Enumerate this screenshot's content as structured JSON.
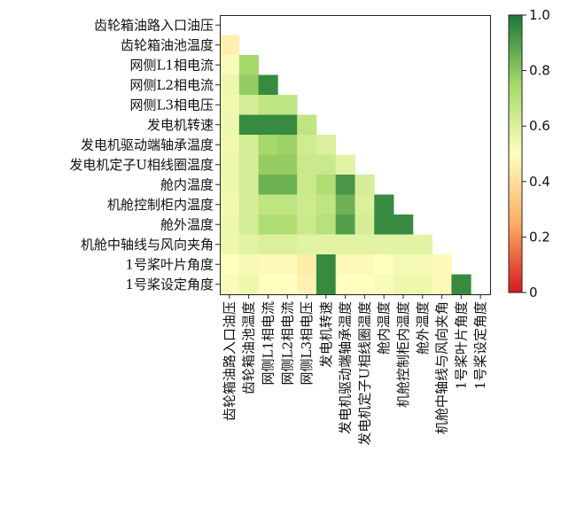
{
  "chart_data": {
    "type": "heatmap",
    "variables": [
      "齿轮箱油路入口油压",
      "齿轮箱油池温度",
      "网侧L1相电流",
      "网侧L2相电流",
      "网侧L3相电压",
      "发电机转速",
      "发电机驱动端轴承温度",
      "发电机定子U相线圈温度",
      "舱内温度",
      "机舱控制柜内温度",
      "舱外温度",
      "机舱中轴线与风向夹角",
      "1号桨叶片角度",
      "1号桨设定角度"
    ],
    "matrix_lower_triangle": [
      [],
      [
        0.45
      ],
      [
        0.52,
        0.75
      ],
      [
        0.55,
        0.78,
        0.95
      ],
      [
        0.54,
        0.62,
        0.68,
        0.68
      ],
      [
        0.55,
        0.95,
        0.95,
        0.95,
        0.68
      ],
      [
        0.54,
        0.62,
        0.75,
        0.77,
        0.63,
        0.6
      ],
      [
        0.55,
        0.62,
        0.78,
        0.78,
        0.65,
        0.65,
        0.58
      ],
      [
        0.55,
        0.62,
        0.85,
        0.85,
        0.65,
        0.72,
        0.92,
        0.62
      ],
      [
        0.54,
        0.62,
        0.68,
        0.68,
        0.64,
        0.68,
        0.85,
        0.6,
        0.95
      ],
      [
        0.55,
        0.62,
        0.72,
        0.72,
        0.65,
        0.7,
        0.9,
        0.62,
        0.95,
        0.95
      ],
      [
        0.55,
        0.58,
        0.6,
        0.6,
        0.58,
        0.58,
        0.58,
        0.58,
        0.58,
        0.58,
        0.58
      ],
      [
        0.5,
        0.53,
        0.48,
        0.48,
        0.44,
        0.95,
        0.48,
        0.48,
        0.5,
        0.53,
        0.53,
        0.48
      ],
      [
        0.52,
        0.55,
        0.5,
        0.5,
        0.46,
        0.95,
        0.5,
        0.5,
        0.52,
        0.55,
        0.55,
        0.48,
        0.95
      ]
    ],
    "colorbar": {
      "range": [
        0,
        1.0
      ],
      "ticks": [
        "0",
        "0.2",
        "0.4",
        "0.6",
        "0.8",
        "1.0"
      ],
      "colormap": [
        "#d7191c",
        "#fdae61",
        "#ffffbf",
        "#a6d96a",
        "#1a7837"
      ]
    }
  }
}
